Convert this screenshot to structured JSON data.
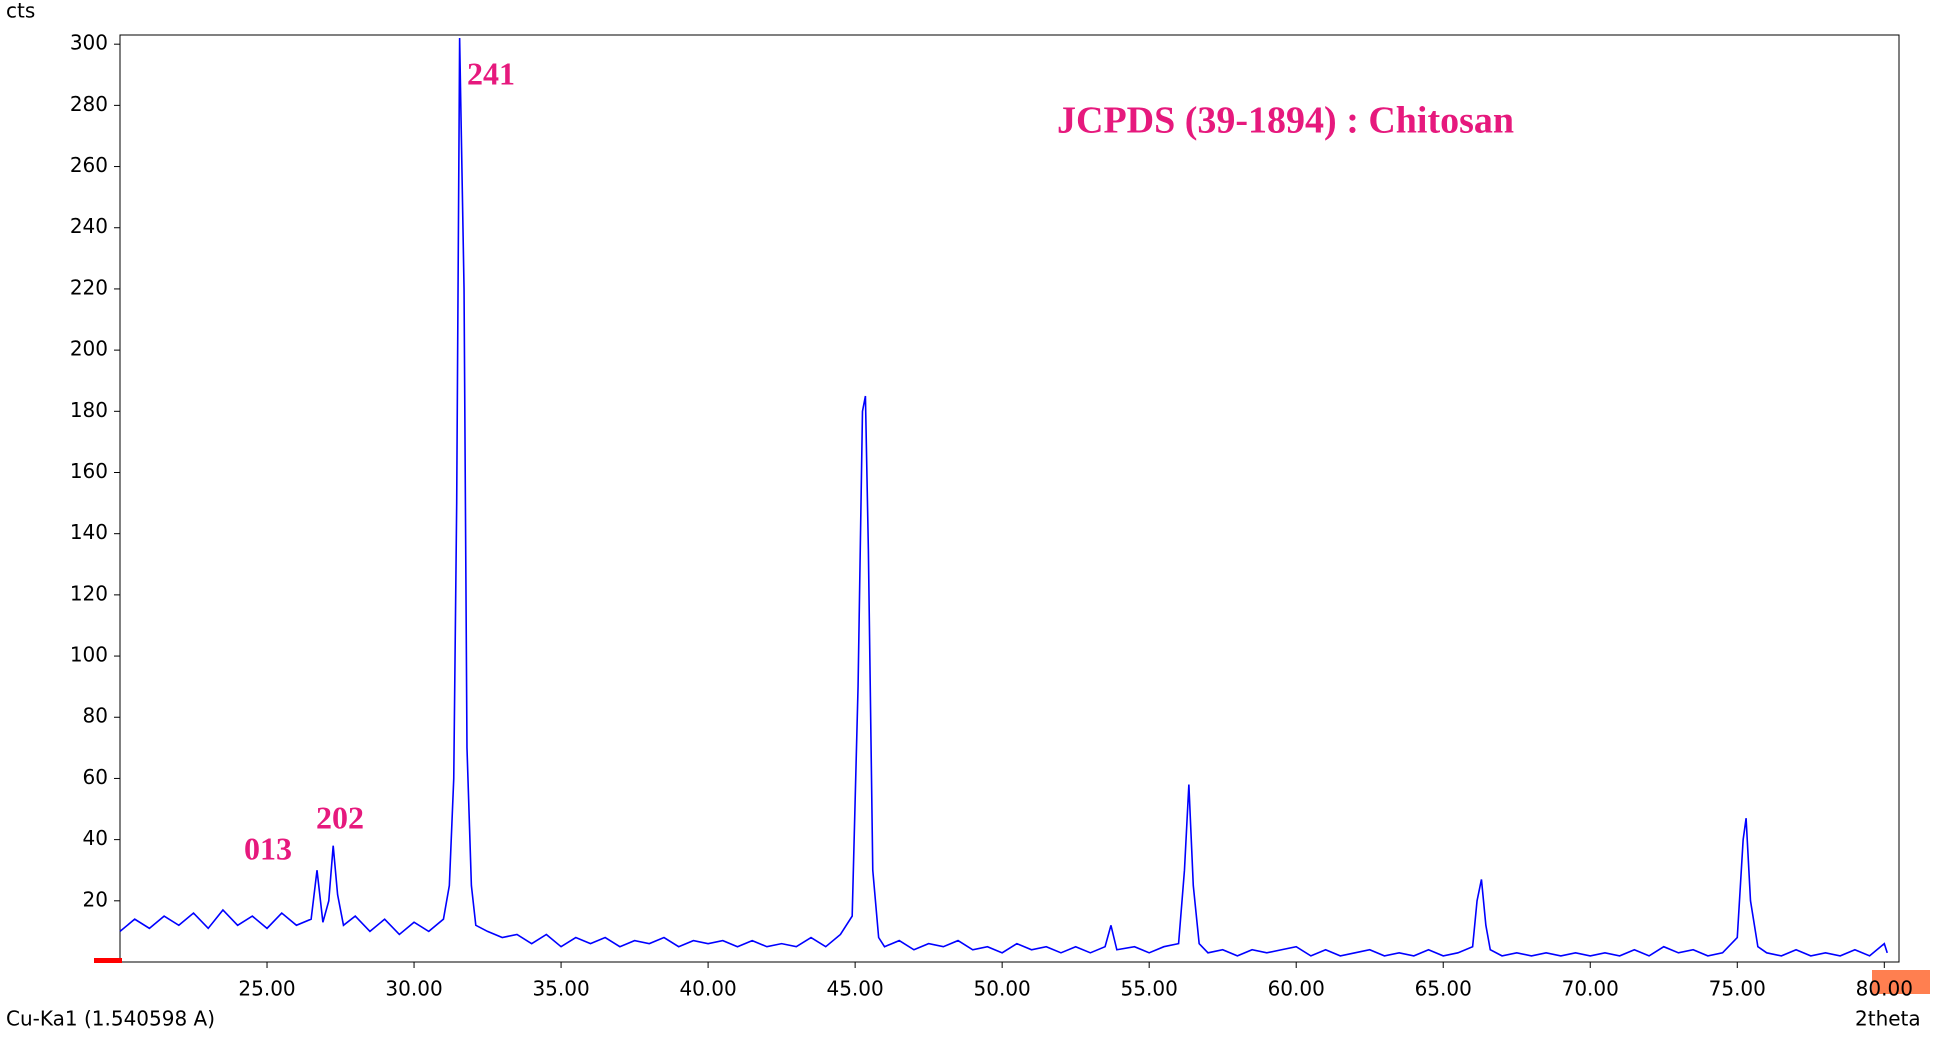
{
  "chart_data": {
    "type": "line",
    "y_label": "cts",
    "x_label": "2theta",
    "source_label": "Cu-Ka1 (1.540598 A)",
    "annotations": [
      "JCPDS (39-1894) : Chitosan",
      "241",
      "013",
      "202"
    ],
    "xlim": [
      20,
      80.5
    ],
    "ylim": [
      0,
      303
    ],
    "xticks": [
      {
        "value": 25,
        "label": "25.00"
      },
      {
        "value": 30,
        "label": "30.00"
      },
      {
        "value": 35,
        "label": "35.00"
      },
      {
        "value": 40,
        "label": "40.00"
      },
      {
        "value": 45,
        "label": "45.00"
      },
      {
        "value": 50,
        "label": "50.00"
      },
      {
        "value": 55,
        "label": "55.00"
      },
      {
        "value": 60,
        "label": "60.00"
      },
      {
        "value": 65,
        "label": "65.00"
      },
      {
        "value": 70,
        "label": "70.00"
      },
      {
        "value": 75,
        "label": "75.00"
      },
      {
        "value": 80,
        "label": "80.00"
      }
    ],
    "yticks": [
      20,
      40,
      60,
      80,
      100,
      120,
      140,
      160,
      180,
      200,
      220,
      240,
      260,
      280,
      300
    ],
    "x": [
      20.0,
      20.5,
      21.0,
      21.5,
      22.0,
      22.5,
      23.0,
      23.5,
      24.0,
      24.5,
      25.0,
      25.5,
      26.0,
      26.5,
      26.7,
      26.9,
      27.1,
      27.25,
      27.4,
      27.6,
      28.0,
      28.5,
      29.0,
      29.5,
      30.0,
      30.5,
      31.0,
      31.2,
      31.35,
      31.45,
      31.55,
      31.7,
      31.8,
      31.95,
      32.1,
      32.5,
      33.0,
      33.5,
      34.0,
      34.5,
      35.0,
      35.5,
      36.0,
      36.5,
      37.0,
      37.5,
      38.0,
      38.5,
      39.0,
      39.5,
      40.0,
      40.5,
      41.0,
      41.5,
      42.0,
      42.5,
      43.0,
      43.5,
      44.0,
      44.5,
      44.9,
      45.1,
      45.25,
      45.35,
      45.45,
      45.6,
      45.8,
      46.0,
      46.5,
      47.0,
      47.5,
      48.0,
      48.5,
      49.0,
      49.5,
      50.0,
      50.5,
      51.0,
      51.5,
      52.0,
      52.5,
      53.0,
      53.5,
      53.7,
      53.9,
      54.5,
      55.0,
      55.5,
      56.0,
      56.2,
      56.35,
      56.5,
      56.7,
      57.0,
      57.5,
      58.0,
      58.5,
      59.0,
      59.5,
      60.0,
      60.5,
      61.0,
      61.5,
      62.0,
      62.5,
      63.0,
      63.5,
      64.0,
      64.5,
      65.0,
      65.5,
      66.0,
      66.15,
      66.3,
      66.45,
      66.6,
      67.0,
      67.5,
      68.0,
      68.5,
      69.0,
      69.5,
      70.0,
      70.5,
      71.0,
      71.5,
      72.0,
      72.5,
      73.0,
      73.5,
      74.0,
      74.5,
      75.0,
      75.2,
      75.3,
      75.45,
      75.7,
      76.0,
      76.5,
      77.0,
      77.5,
      78.0,
      78.5,
      79.0,
      79.5,
      80.0,
      80.1
    ],
    "series": [
      {
        "name": "Chitosan",
        "color": "#0000ff",
        "values": [
          10,
          14,
          11,
          15,
          12,
          16,
          11,
          17,
          12,
          15,
          11,
          16,
          12,
          14,
          30,
          13,
          20,
          38,
          22,
          12,
          15,
          10,
          14,
          9,
          13,
          10,
          14,
          25,
          60,
          150,
          302,
          220,
          70,
          25,
          12,
          10,
          8,
          9,
          6,
          9,
          5,
          8,
          6,
          8,
          5,
          7,
          6,
          8,
          5,
          7,
          6,
          7,
          5,
          7,
          5,
          6,
          5,
          8,
          5,
          9,
          15,
          90,
          180,
          185,
          135,
          30,
          8,
          5,
          7,
          4,
          6,
          5,
          7,
          4,
          5,
          3,
          6,
          4,
          5,
          3,
          5,
          3,
          5,
          12,
          4,
          5,
          3,
          5,
          6,
          30,
          58,
          25,
          6,
          3,
          4,
          2,
          4,
          3,
          4,
          5,
          2,
          4,
          2,
          3,
          4,
          2,
          3,
          2,
          4,
          2,
          3,
          5,
          20,
          27,
          12,
          4,
          2,
          3,
          2,
          3,
          2,
          3,
          2,
          3,
          2,
          4,
          2,
          5,
          3,
          4,
          2,
          3,
          8,
          40,
          47,
          20,
          5,
          3,
          2,
          4,
          2,
          3,
          2,
          4,
          2,
          6,
          3
        ]
      }
    ]
  }
}
